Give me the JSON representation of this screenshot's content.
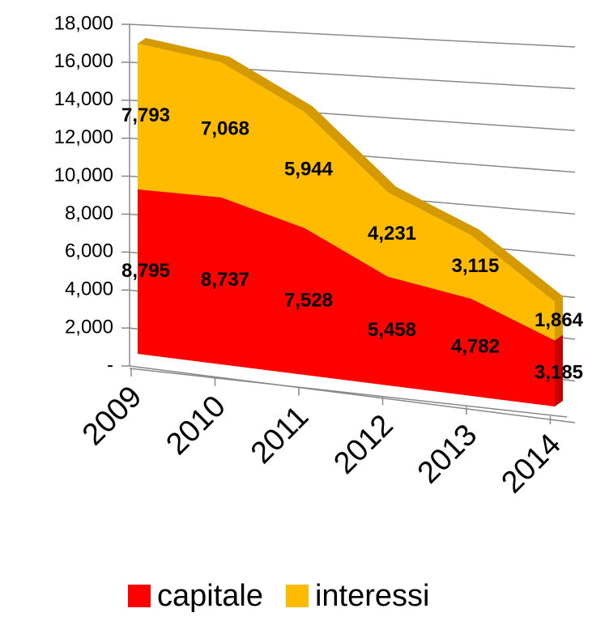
{
  "chart_data": {
    "type": "stacked_area_3d",
    "categories": [
      "2009",
      "2010",
      "2011",
      "2012",
      "2013",
      "2014"
    ],
    "series": [
      {
        "name": "capitale",
        "color": "#ff0000",
        "values": [
          8795,
          8737,
          7528,
          5458,
          4782,
          3185
        ],
        "value_labels": [
          "8,795",
          "8,737",
          "7,528",
          "5,458",
          "4,782",
          "3,185"
        ]
      },
      {
        "name": "interessi",
        "color": "#ffbb00",
        "values": [
          7793,
          7068,
          5944,
          4231,
          3115,
          1864
        ],
        "value_labels": [
          "7,793",
          "7,068",
          "5,944",
          "4,231",
          "3,115",
          "1,864"
        ]
      }
    ],
    "ylim": [
      0,
      18000
    ],
    "yticks": [
      {
        "value": 0,
        "label": "-"
      },
      {
        "value": 2000,
        "label": "2,000"
      },
      {
        "value": 4000,
        "label": "4,000"
      },
      {
        "value": 6000,
        "label": "6,000"
      },
      {
        "value": 8000,
        "label": "8,000"
      },
      {
        "value": 10000,
        "label": "10,000"
      },
      {
        "value": 12000,
        "label": "12,000"
      },
      {
        "value": 14000,
        "label": "14,000"
      },
      {
        "value": 16000,
        "label": "16,000"
      },
      {
        "value": 18000,
        "label": "18,000"
      }
    ],
    "grid": true,
    "legend": "bottom"
  }
}
